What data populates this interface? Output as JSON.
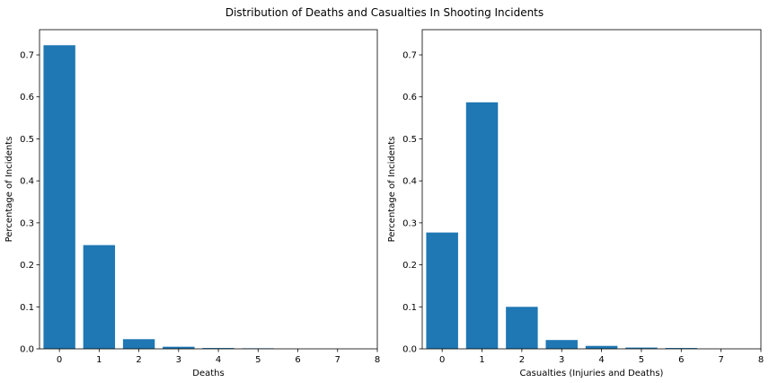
{
  "figure": {
    "suptitle": "Distribution of Deaths and Casualties In Shooting Incidents"
  },
  "colors": {
    "bar": "#1f77b4",
    "axis": "#000000",
    "background": "#ffffff"
  },
  "chart_data": [
    {
      "type": "bar",
      "title": "",
      "xlabel": "Deaths",
      "ylabel": "Percentage of Incidents",
      "categories": [
        0,
        1,
        2,
        3,
        4,
        5
      ],
      "values": [
        0.723,
        0.247,
        0.023,
        0.005,
        0.002,
        0.0005
      ],
      "xlim": [
        -0.5,
        8
      ],
      "ylim": [
        0,
        0.76
      ],
      "xticks": [
        0,
        1,
        2,
        3,
        4,
        5,
        6,
        7,
        8
      ],
      "yticks": [
        0.0,
        0.1,
        0.2,
        0.3,
        0.4,
        0.5,
        0.6,
        0.7
      ],
      "ytick_labels": [
        "0.0",
        "0.1",
        "0.2",
        "0.3",
        "0.4",
        "0.5",
        "0.6",
        "0.7"
      ],
      "grid": false,
      "bar_width": 0.8
    },
    {
      "type": "bar",
      "title": "",
      "xlabel": "Casualties (Injuries and Deaths)",
      "ylabel": "Percentage of Incidents",
      "categories": [
        0,
        1,
        2,
        3,
        4,
        5,
        6
      ],
      "values": [
        0.277,
        0.587,
        0.1,
        0.021,
        0.007,
        0.003,
        0.002
      ],
      "xlim": [
        -0.5,
        8
      ],
      "ylim": [
        0,
        0.76
      ],
      "xticks": [
        0,
        1,
        2,
        3,
        4,
        5,
        6,
        7,
        8
      ],
      "yticks": [
        0.0,
        0.1,
        0.2,
        0.3,
        0.4,
        0.5,
        0.6,
        0.7
      ],
      "ytick_labels": [
        "0.0",
        "0.1",
        "0.2",
        "0.3",
        "0.4",
        "0.5",
        "0.6",
        "0.7"
      ],
      "grid": false,
      "bar_width": 0.8
    }
  ]
}
